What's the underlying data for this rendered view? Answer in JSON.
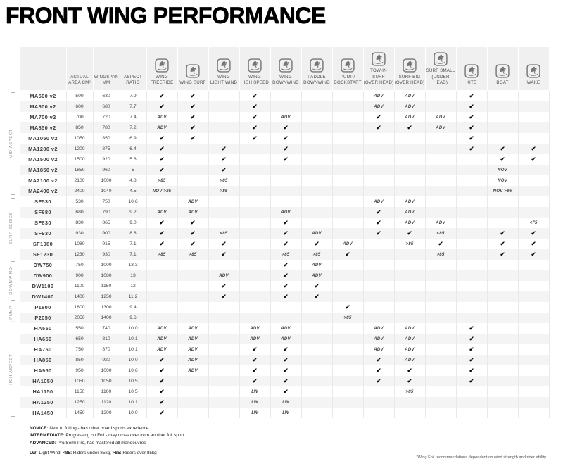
{
  "title": "FRONT WING PERFORMANCE",
  "colors": {
    "header_cell_bg": "#f0f0f0",
    "row_stripe": "#f4f4f4",
    "grid_line": "#e9e9e9",
    "icon_gray": "#757575",
    "check_black": "#0d0d0d"
  },
  "table": {
    "spec_columns": [
      {
        "lines": [
          "ACTUAL",
          "AREA CM²"
        ]
      },
      {
        "lines": [
          "WINGSPAN",
          "MM"
        ]
      },
      {
        "lines": [
          "ASPECT",
          "RATIO"
        ]
      }
    ],
    "activity_columns": [
      {
        "lines": [
          "WING",
          "FREERIDE"
        ],
        "icon": "wing-freeride-icon"
      },
      {
        "lines": [
          "WING SURF"
        ],
        "icon": "wing-surf-icon"
      },
      {
        "lines": [
          "WING",
          "LIGHT WIND"
        ],
        "icon": "wing-light-wind-icon"
      },
      {
        "lines": [
          "WING",
          "HIGH SPEED"
        ],
        "icon": "wing-high-speed-icon"
      },
      {
        "lines": [
          "WING",
          "DOWNWIND"
        ],
        "icon": "wing-downwind-icon"
      },
      {
        "lines": [
          "PADDLE",
          "DOWNWIND"
        ],
        "icon": "paddle-downwind-icon"
      },
      {
        "lines": [
          "PUMP/",
          "DOCKSTART"
        ],
        "icon": "pump-dockstart-icon"
      },
      {
        "lines": [
          "TOW-IN SURF",
          "(OVER HEAD)"
        ],
        "icon": "tow-in-surf-icon"
      },
      {
        "lines": [
          "SURF BIG",
          "(OVER HEAD)"
        ],
        "icon": "surf-big-icon"
      },
      {
        "lines": [
          "SURF SMALL",
          "(UNDER HEAD)"
        ],
        "icon": "surf-small-icon"
      },
      {
        "lines": [
          "KITE"
        ],
        "icon": "kite-icon"
      },
      {
        "lines": [
          "BOAT"
        ],
        "icon": "boat-icon"
      },
      {
        "lines": [
          "WAKE"
        ],
        "icon": "wake-icon"
      }
    ],
    "rating_legend": {
      "CHECK": "recommended",
      "ADV": "advanced",
      "NOV": "novice",
      "LW": "light wind"
    },
    "sections": [
      {
        "label": "MID ASPECT",
        "rows": [
          {
            "model": "MA500 v2",
            "area": "500",
            "wingspan": "630",
            "ratio": "7.9",
            "ratings": [
              "CHECK",
              "CHECK",
              "",
              "CHECK",
              "",
              "",
              "",
              "ADV",
              "ADV",
              "",
              "CHECK",
              "",
              ""
            ]
          },
          {
            "model": "MA600 v2",
            "area": "600",
            "wingspan": "680",
            "ratio": "7.7",
            "ratings": [
              "CHECK",
              "CHECK",
              "",
              "CHECK",
              "",
              "",
              "",
              "ADV",
              "ADV",
              "",
              "CHECK",
              "",
              ""
            ]
          },
          {
            "model": "MA700 v2",
            "area": "700",
            "wingspan": "720",
            "ratio": "7.4",
            "ratings": [
              "ADV",
              "CHECK",
              "",
              "CHECK",
              "ADV",
              "",
              "",
              "CHECK",
              "ADV",
              "ADV",
              "CHECK",
              "",
              ""
            ]
          },
          {
            "model": "MA850 v2",
            "area": "850",
            "wingspan": "780",
            "ratio": "7.2",
            "ratings": [
              "ADV",
              "CHECK",
              "",
              "CHECK",
              "CHECK",
              "",
              "",
              "CHECK",
              "CHECK",
              "ADV",
              "CHECK",
              "",
              ""
            ]
          },
          {
            "model": "MA1050 v2",
            "area": "1050",
            "wingspan": "850",
            "ratio": "6.9",
            "ratings": [
              "CHECK",
              "CHECK",
              "",
              "CHECK",
              "CHECK",
              "",
              "",
              "",
              "",
              "",
              "CHECK",
              "",
              ""
            ]
          },
          {
            "model": "MA1200 v2",
            "area": "1200",
            "wingspan": "875",
            "ratio": "6.4",
            "ratings": [
              "CHECK",
              "",
              "CHECK",
              "",
              "CHECK",
              "",
              "",
              "",
              "",
              "",
              "CHECK",
              "CHECK",
              "CHECK"
            ]
          },
          {
            "model": "MA1500 v2",
            "area": "1500",
            "wingspan": "920",
            "ratio": "5.6",
            "ratings": [
              "CHECK",
              "",
              "CHECK",
              "",
              "CHECK",
              "",
              "",
              "",
              "",
              "",
              "",
              "CHECK",
              "CHECK"
            ]
          },
          {
            "model": "MA1850 v2",
            "area": "1850",
            "wingspan": "960",
            "ratio": "5",
            "ratings": [
              "CHECK",
              "",
              "CHECK",
              "",
              "",
              "",
              "",
              "",
              "",
              "",
              "",
              "NOV",
              ""
            ]
          },
          {
            "model": "MA2100 v2",
            "area": "2100",
            "wingspan": "1000",
            "ratio": "4.8",
            "ratings": [
              ">85",
              "",
              ">85",
              "",
              "",
              "",
              "",
              "",
              "",
              "",
              "",
              "NOV",
              ""
            ]
          },
          {
            "model": "MA2400 v2",
            "area": "2400",
            "wingspan": "1040",
            "ratio": "4.5",
            "ratings": [
              "NOV >85",
              "",
              ">85",
              "",
              "",
              "",
              "",
              "",
              "",
              "",
              "",
              "NOV >95",
              ""
            ]
          }
        ]
      },
      {
        "label": "SURF SERIES",
        "rows": [
          {
            "model": "SF530",
            "area": "530",
            "wingspan": "750",
            "ratio": "10.6",
            "ratings": [
              "",
              "ADV",
              "",
              "",
              "",
              "",
              "",
              "ADV",
              "ADV",
              "",
              "",
              "",
              ""
            ]
          },
          {
            "model": "SF680",
            "area": "680",
            "wingspan": "790",
            "ratio": "9.2",
            "ratings": [
              "ADV",
              "ADV",
              "",
              "",
              "ADV",
              "",
              "",
              "CHECK",
              "ADV",
              "",
              "",
              "",
              ""
            ]
          },
          {
            "model": "SF830",
            "area": "830",
            "wingspan": "865",
            "ratio": "9.0",
            "ratings": [
              "CHECK",
              "CHECK",
              "",
              "",
              "CHECK",
              "",
              "",
              "CHECK",
              "ADV",
              "ADV",
              "",
              "",
              "<75"
            ]
          },
          {
            "model": "SF930",
            "area": "930",
            "wingspan": "900",
            "ratio": "8.8",
            "ratings": [
              "CHECK",
              "CHECK",
              "<85",
              "",
              "CHECK",
              "ADV",
              "",
              "CHECK",
              "CHECK",
              "<85",
              "",
              "CHECK",
              "CHECK"
            ]
          },
          {
            "model": "SF1080",
            "area": "1080",
            "wingspan": "915",
            "ratio": "7.1",
            "ratings": [
              "CHECK",
              "CHECK",
              "CHECK",
              "",
              "CHECK",
              "CHECK",
              "ADV",
              "",
              ">85",
              "CHECK",
              "",
              "CHECK",
              "CHECK"
            ]
          },
          {
            "model": "SF1230",
            "area": "1230",
            "wingspan": "930",
            "ratio": "7.1",
            "ratings": [
              ">85",
              ">85",
              "CHECK",
              "",
              ">85",
              ">85",
              "CHECK",
              "",
              "",
              ">85",
              "",
              "CHECK",
              "CHECK"
            ]
          }
        ]
      },
      {
        "label": "DOWNWIND",
        "rows": [
          {
            "model": "DW750",
            "area": "750",
            "wingspan": "1000",
            "ratio": "13.3",
            "ratings": [
              "",
              "",
              "",
              "",
              "CHECK",
              "ADV",
              "",
              "",
              "",
              "",
              "",
              "",
              ""
            ]
          },
          {
            "model": "DW900",
            "area": "900",
            "wingspan": "1080",
            "ratio": "13",
            "ratings": [
              "",
              "",
              "ADV",
              "",
              "CHECK",
              "ADV",
              "",
              "",
              "",
              "",
              "",
              "",
              ""
            ]
          },
          {
            "model": "DW1100",
            "area": "1100",
            "wingspan": "1150",
            "ratio": "12",
            "ratings": [
              "",
              "",
              "CHECK",
              "",
              "CHECK",
              "CHECK",
              "",
              "",
              "",
              "",
              "",
              "",
              ""
            ]
          },
          {
            "model": "DW1400",
            "area": "1400",
            "wingspan": "1250",
            "ratio": "11.2",
            "ratings": [
              "",
              "",
              "CHECK",
              "",
              "CHECK",
              "CHECK",
              "",
              "",
              "",
              "",
              "",
              "",
              ""
            ]
          }
        ]
      },
      {
        "label": "PUMP",
        "rows": [
          {
            "model": "P1800",
            "area": "1800",
            "wingspan": "1300",
            "ratio": "9.4",
            "ratings": [
              "",
              "",
              "",
              "",
              "",
              "",
              "CHECK",
              "",
              "",
              "",
              "",
              "",
              ""
            ]
          },
          {
            "model": "P2050",
            "area": "2050",
            "wingspan": "1400",
            "ratio": "9.6",
            "ratings": [
              "",
              "",
              "",
              "",
              "",
              "",
              ">85",
              "",
              "",
              "",
              "",
              "",
              ""
            ]
          }
        ]
      },
      {
        "label": "HIGH ASPECT",
        "rows": [
          {
            "model": "HA550",
            "area": "550",
            "wingspan": "740",
            "ratio": "10.0",
            "ratings": [
              "ADV",
              "ADV",
              "",
              "ADV",
              "ADV",
              "",
              "",
              "ADV",
              "ADV",
              "",
              "CHECK",
              "",
              ""
            ]
          },
          {
            "model": "HA650",
            "area": "650",
            "wingspan": "810",
            "ratio": "10.1",
            "ratings": [
              "ADV",
              "ADV",
              "",
              "ADV",
              "ADV",
              "",
              "",
              "ADV",
              "ADV",
              "",
              "CHECK",
              "",
              ""
            ]
          },
          {
            "model": "HA750",
            "area": "750",
            "wingspan": "870",
            "ratio": "10.1",
            "ratings": [
              "ADV",
              "ADV",
              "",
              "CHECK",
              "CHECK",
              "",
              "",
              "ADV",
              "ADV",
              "",
              "CHECK",
              "",
              ""
            ]
          },
          {
            "model": "HA850",
            "area": "850",
            "wingspan": "920",
            "ratio": "10.0",
            "ratings": [
              "CHECK",
              "ADV",
              "",
              "CHECK",
              "CHECK",
              "",
              "",
              "CHECK",
              "ADV",
              "",
              "CHECK",
              "",
              ""
            ]
          },
          {
            "model": "HA950",
            "area": "950",
            "wingspan": "1000",
            "ratio": "10.6",
            "ratings": [
              "CHECK",
              "ADV",
              "",
              "CHECK",
              "CHECK",
              "",
              "",
              "CHECK",
              "CHECK",
              "",
              "CHECK",
              "",
              ""
            ]
          },
          {
            "model": "HA1050",
            "area": "1050",
            "wingspan": "1050",
            "ratio": "10.5",
            "ratings": [
              "CHECK",
              "",
              "",
              "CHECK",
              "CHECK",
              "",
              "",
              "CHECK",
              "CHECK",
              "",
              "CHECK",
              "",
              ""
            ]
          },
          {
            "model": "HA1150",
            "area": "1150",
            "wingspan": "1100",
            "ratio": "10.5",
            "ratings": [
              "CHECK",
              "",
              "",
              "LW",
              "CHECK",
              "",
              "",
              "",
              ">85",
              "",
              "",
              "",
              ""
            ]
          },
          {
            "model": "HA1250",
            "area": "1250",
            "wingspan": "1120",
            "ratio": "10.1",
            "ratings": [
              "CHECK",
              "",
              "",
              "LW",
              "LW",
              "",
              "",
              "",
              "",
              "",
              "",
              "",
              ""
            ]
          },
          {
            "model": "HA1450",
            "area": "1450",
            "wingspan": "1200",
            "ratio": "10.0",
            "ratings": [
              "CHECK",
              "",
              "",
              "LW",
              "LW",
              "",
              "",
              "",
              "",
              "",
              "",
              "",
              ""
            ]
          }
        ]
      }
    ]
  },
  "legend": {
    "lines": [
      [
        [
          "b",
          "NOVICE:"
        ],
        [
          "t",
          " New to foiling - has other board sports experience"
        ]
      ],
      [
        [
          "b",
          "INTERMEDIATE:"
        ],
        [
          "t",
          " Progressing on Foil - may cross over from another foil sport"
        ]
      ],
      [
        [
          "b",
          "ADVANCED:"
        ],
        [
          "t",
          " Pro/Semi-Pro, has mastered all manoeuvres"
        ]
      ],
      [
        [
          "b",
          "LW:"
        ],
        [
          "t",
          " Light Wind, "
        ],
        [
          "b",
          "<85:"
        ],
        [
          "t",
          " Riders under 85kg, "
        ],
        [
          "b",
          ">85:"
        ],
        [
          "t",
          " Riders over 85kg"
        ]
      ]
    ]
  },
  "footnote_right": "*Wing Foil recommendations dependent on wind strength and rider ability"
}
